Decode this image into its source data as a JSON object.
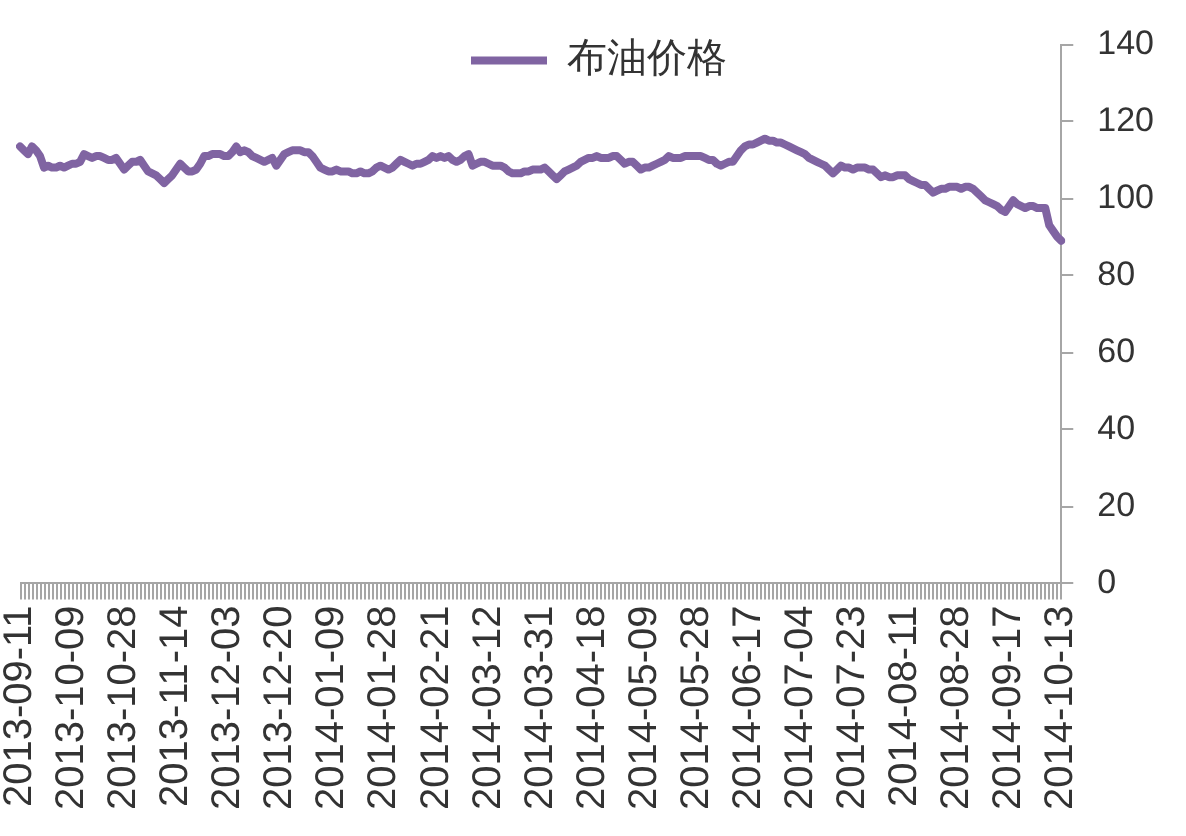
{
  "chart_data": {
    "type": "line",
    "categories": [
      "2013-09-11",
      null,
      null,
      null,
      null,
      null,
      null,
      null,
      null,
      null,
      null,
      null,
      null,
      "2013-10-09",
      null,
      null,
      null,
      null,
      null,
      null,
      null,
      null,
      null,
      null,
      null,
      null,
      "2013-10-28",
      null,
      null,
      null,
      null,
      null,
      null,
      null,
      null,
      null,
      null,
      null,
      null,
      "2013-11-14",
      null,
      null,
      null,
      null,
      null,
      null,
      null,
      null,
      null,
      null,
      null,
      null,
      "2013-12-03",
      null,
      null,
      null,
      null,
      null,
      null,
      null,
      null,
      null,
      null,
      null,
      null,
      "2013-12-20",
      null,
      null,
      null,
      null,
      null,
      null,
      null,
      null,
      null,
      null,
      null,
      null,
      "2014-01-09",
      null,
      null,
      null,
      null,
      null,
      null,
      null,
      null,
      null,
      null,
      null,
      null,
      "2014-01-28",
      null,
      null,
      null,
      null,
      null,
      null,
      null,
      null,
      null,
      null,
      null,
      null,
      "2014-02-21",
      null,
      null,
      null,
      null,
      null,
      null,
      null,
      null,
      null,
      null,
      null,
      null,
      "2014-03-12",
      null,
      null,
      null,
      null,
      null,
      null,
      null,
      null,
      null,
      null,
      null,
      null,
      "2014-03-31",
      null,
      null,
      null,
      null,
      null,
      null,
      null,
      null,
      null,
      null,
      null,
      null,
      "2014-04-18",
      null,
      null,
      null,
      null,
      null,
      null,
      null,
      null,
      null,
      null,
      null,
      null,
      "2014-05-09",
      null,
      null,
      null,
      null,
      null,
      null,
      null,
      null,
      null,
      null,
      null,
      null,
      "2014-05-28",
      null,
      null,
      null,
      null,
      null,
      null,
      null,
      null,
      null,
      null,
      null,
      null,
      "2014-06-17",
      null,
      null,
      null,
      null,
      null,
      null,
      null,
      null,
      null,
      null,
      null,
      null,
      "2014-07-04",
      null,
      null,
      null,
      null,
      null,
      null,
      null,
      null,
      null,
      null,
      null,
      null,
      "2014-07-23",
      null,
      null,
      null,
      null,
      null,
      null,
      null,
      null,
      null,
      null,
      null,
      null,
      "2014-08-11",
      null,
      null,
      null,
      null,
      null,
      null,
      null,
      null,
      null,
      null,
      null,
      null,
      "2014-08-28",
      null,
      null,
      null,
      null,
      null,
      null,
      null,
      null,
      null,
      null,
      null,
      null,
      "2014-09-17",
      null,
      null,
      null,
      null,
      null,
      null,
      null,
      null,
      null,
      null,
      null,
      null,
      "2014-10-13"
    ],
    "series": [
      {
        "name": "布油价格",
        "color": "#8064a2",
        "values": [
          113.5,
          112.5,
          111.5,
          113.5,
          112.5,
          111,
          108,
          108.5,
          108,
          108,
          108.5,
          108,
          108.5,
          109,
          109,
          109.5,
          111.5,
          111,
          110.5,
          111,
          111,
          110.5,
          110,
          110,
          110.5,
          109,
          107.5,
          108.5,
          109.5,
          109.5,
          110,
          108.5,
          107,
          106.5,
          106,
          105,
          104,
          105,
          106,
          107.5,
          109,
          108,
          107,
          107,
          107.5,
          109,
          111,
          111,
          111.5,
          111.5,
          111.5,
          111,
          111,
          112,
          113.5,
          112,
          112.5,
          112,
          111,
          110.5,
          110,
          109.5,
          110,
          110.5,
          108.5,
          110,
          111.5,
          112,
          112.5,
          112.5,
          112.5,
          112,
          112,
          111,
          109.5,
          108,
          107.5,
          107,
          107,
          107.5,
          107,
          107,
          107,
          106.5,
          106.5,
          107,
          106.5,
          106.5,
          107,
          108,
          108.5,
          108,
          107.5,
          108,
          109,
          110,
          109.5,
          109,
          108.5,
          109,
          109,
          109.5,
          110,
          111,
          110.5,
          111,
          110.5,
          111,
          110,
          109.5,
          110,
          111,
          111.5,
          108.5,
          109,
          109.5,
          109.5,
          109,
          108.5,
          108.5,
          108.5,
          108,
          107,
          106.5,
          106.5,
          106.5,
          107,
          107,
          107.5,
          107.5,
          107.5,
          108,
          107,
          106,
          105,
          106,
          107,
          107.5,
          108,
          108.5,
          109.5,
          110,
          110.5,
          110.5,
          111,
          110.5,
          110.5,
          110.5,
          111,
          111,
          110,
          109,
          109.5,
          109.5,
          108.5,
          107.5,
          108,
          108,
          108.5,
          109,
          109.5,
          110,
          111,
          110.5,
          110.5,
          110.5,
          111,
          111,
          111,
          111,
          111,
          110.5,
          110,
          110,
          109,
          108.5,
          109,
          109.5,
          109.5,
          111,
          112.5,
          113.5,
          114,
          114,
          114.5,
          115,
          115.5,
          115,
          115,
          114.5,
          114.5,
          114,
          113.5,
          113,
          112.5,
          112,
          111.5,
          110.5,
          110,
          109.5,
          109,
          108.5,
          107.5,
          106.5,
          107.5,
          108.5,
          108,
          108,
          107.5,
          108,
          108,
          108,
          107.5,
          107.5,
          106.5,
          105.5,
          106,
          105.5,
          105.5,
          106,
          106,
          106,
          105,
          104.5,
          104,
          103.5,
          103.5,
          102.5,
          101.5,
          102,
          102.5,
          102.5,
          103,
          103,
          103,
          102.5,
          103,
          103,
          102.5,
          101.5,
          100.5,
          99.5,
          99,
          98.5,
          98,
          97,
          96.5,
          98,
          99.5,
          98.5,
          98,
          97.5,
          98,
          98,
          97.5,
          97.5,
          97.5,
          93,
          91.5,
          90,
          89
        ]
      }
    ],
    "ylim": [
      0,
      140
    ],
    "yticks": [
      0,
      20,
      40,
      60,
      80,
      100,
      120,
      140
    ],
    "legend": "top",
    "marker": "none"
  }
}
